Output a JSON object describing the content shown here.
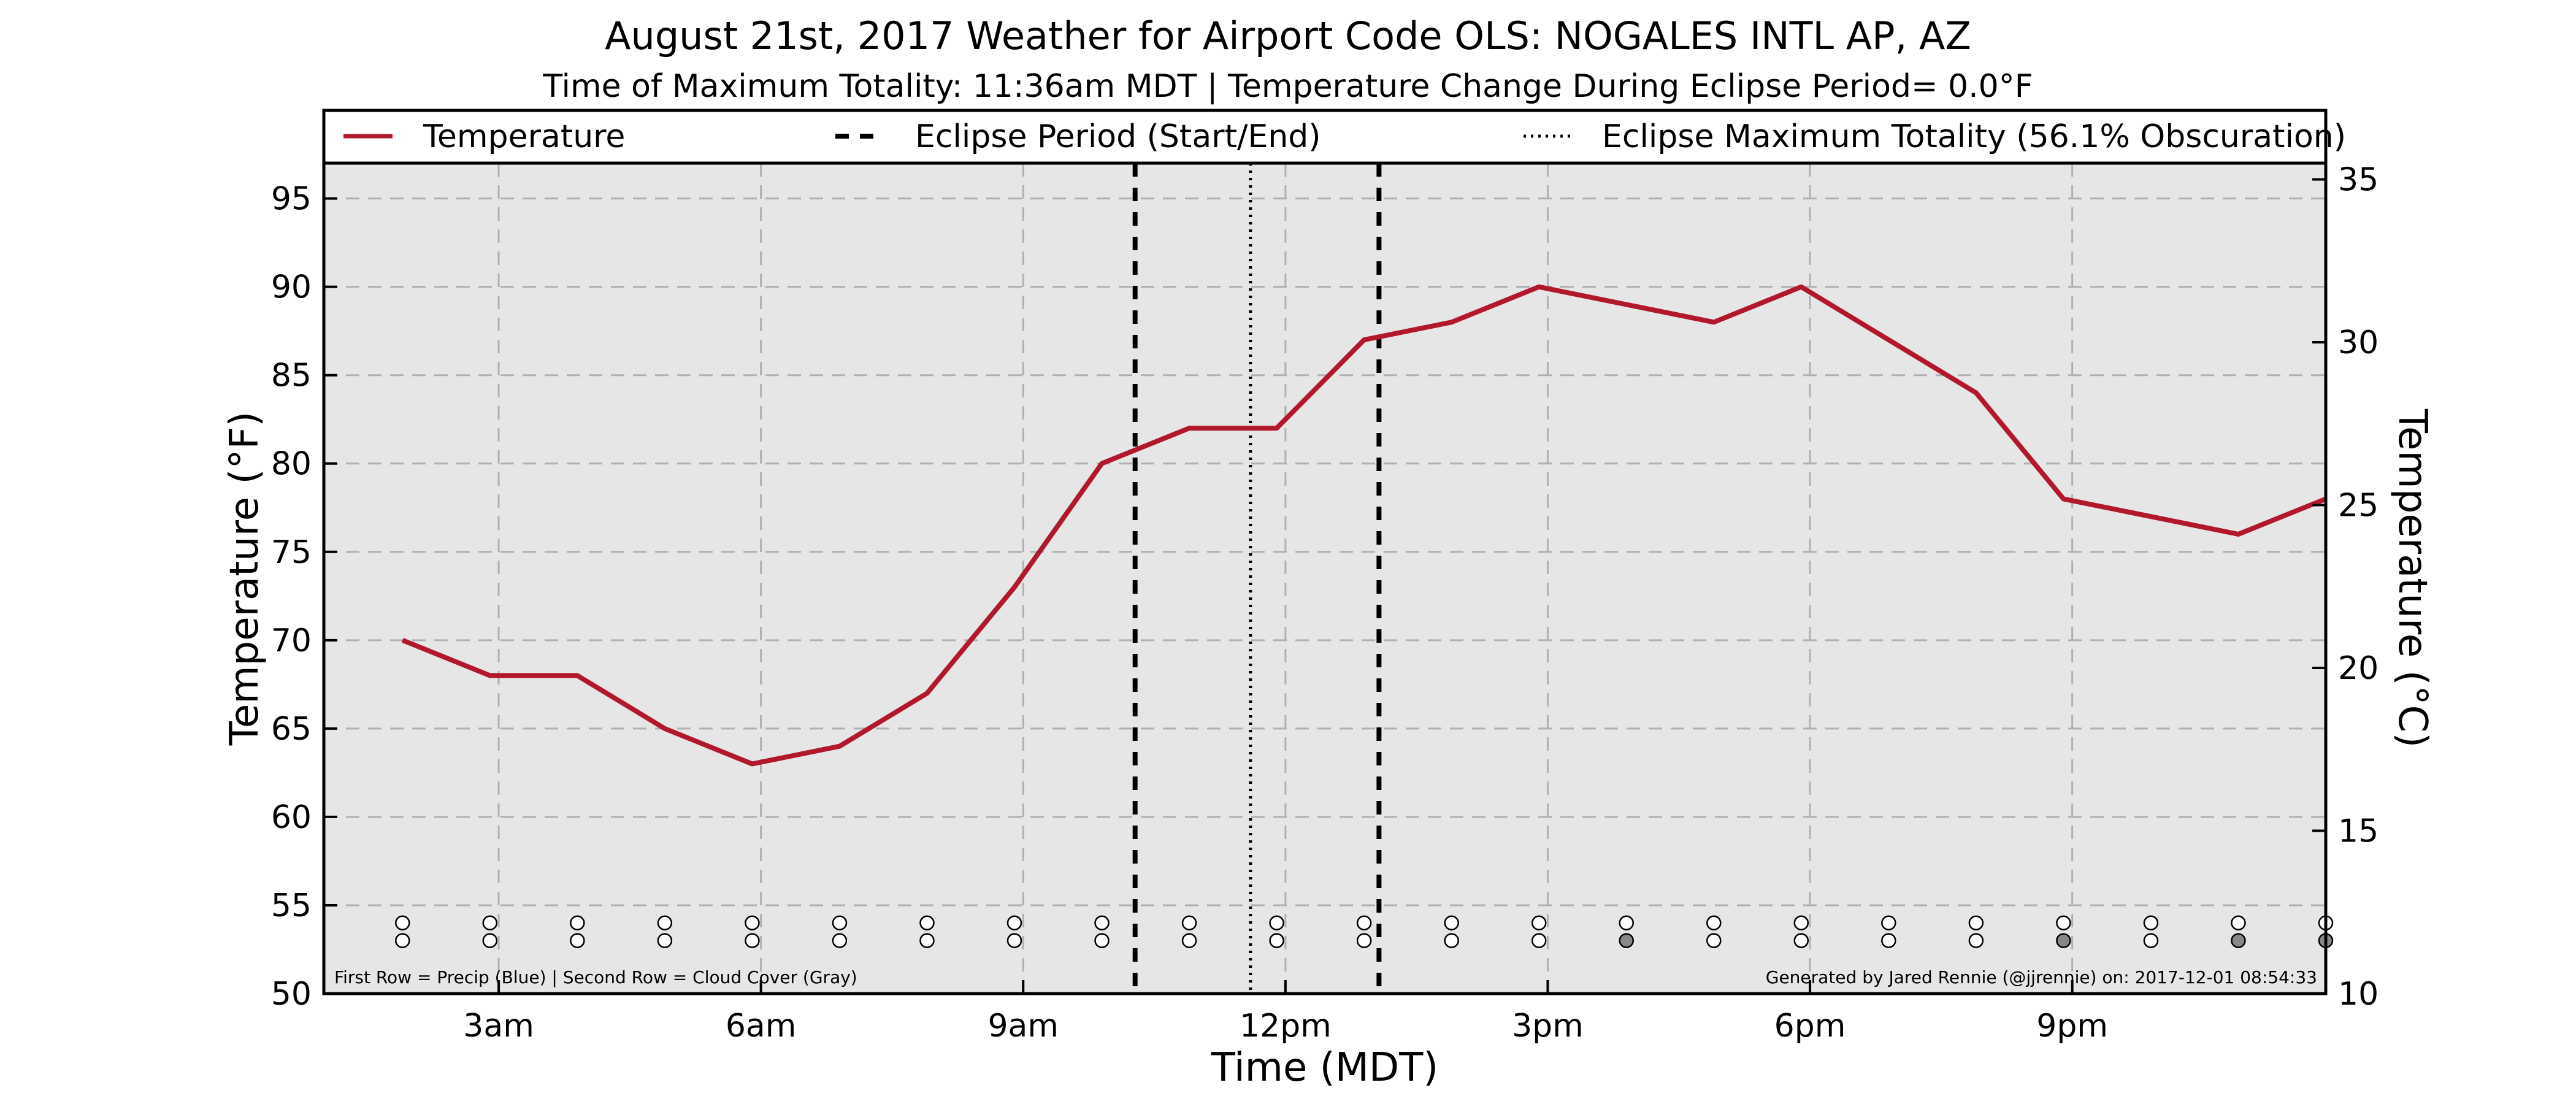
{
  "chart_data": {
    "type": "line",
    "title": "August 21st, 2017 Weather for Airport Code OLS: NOGALES INTL AP, AZ",
    "subtitle": "Time of Maximum Totality: 11:36am MDT | Temperature Change During Eclipse Period= 0.0°F",
    "xlabel": "Time (MDT)",
    "ylabel": "Temperature (°F)",
    "ylabel_right": "Temperature (°C)",
    "xlim": [
      1,
      23.9
    ],
    "ylim": [
      50,
      97
    ],
    "ylim_right": [
      10,
      35.5
    ],
    "x_ticks": [
      {
        "x": 3,
        "label": "3am"
      },
      {
        "x": 6,
        "label": "6am"
      },
      {
        "x": 9,
        "label": "9am"
      },
      {
        "x": 12,
        "label": "12pm"
      },
      {
        "x": 15,
        "label": "3pm"
      },
      {
        "x": 18,
        "label": "6pm"
      },
      {
        "x": 21,
        "label": "9pm"
      }
    ],
    "y_ticks": [
      50,
      55,
      60,
      65,
      70,
      75,
      80,
      85,
      90,
      95
    ],
    "y_ticks_right": [
      10,
      15,
      20,
      25,
      30,
      35
    ],
    "grid": true,
    "legend_position": "top, spanning full width",
    "series": [
      {
        "name": "Temperature",
        "color": "#b2182b",
        "x": [
          1.9,
          2.9,
          3.9,
          4.9,
          5.9,
          6.9,
          7.9,
          8.9,
          9.9,
          10.9,
          11.9,
          12.9,
          13.9,
          14.9,
          15.9,
          16.9,
          17.9,
          18.9,
          19.9,
          20.9,
          21.9,
          22.9,
          23.9
        ],
        "values": [
          70,
          68,
          68,
          65,
          63,
          64,
          67,
          73,
          80,
          82,
          82,
          87,
          88,
          90,
          89,
          88,
          90,
          87,
          84,
          78,
          77,
          76,
          78
        ]
      }
    ],
    "eclipse_start": 10.28,
    "eclipse_end": 13.07,
    "eclipse_max": 11.6,
    "legend": [
      {
        "label": "Temperature",
        "style": "solid",
        "color": "#b2182b"
      },
      {
        "label": "Eclipse Period (Start/End)",
        "style": "dashed",
        "color": "#000000"
      },
      {
        "label": "Eclipse Maximum Totality (56.1% Obscuration)",
        "style": "dotted",
        "color": "#000000"
      }
    ],
    "precip_row_y": 54,
    "cloud_row_y": 53,
    "cloud_cover": [
      {
        "x": 1.9,
        "color": "#ffffff"
      },
      {
        "x": 2.9,
        "color": "#ffffff"
      },
      {
        "x": 3.9,
        "color": "#ffffff"
      },
      {
        "x": 4.9,
        "color": "#ffffff"
      },
      {
        "x": 5.9,
        "color": "#ffffff"
      },
      {
        "x": 6.9,
        "color": "#ffffff"
      },
      {
        "x": 7.9,
        "color": "#ffffff"
      },
      {
        "x": 8.9,
        "color": "#ffffff"
      },
      {
        "x": 9.9,
        "color": "#ffffff"
      },
      {
        "x": 10.9,
        "color": "#ffffff"
      },
      {
        "x": 11.9,
        "color": "#ffffff"
      },
      {
        "x": 12.9,
        "color": "#ffffff"
      },
      {
        "x": 13.9,
        "color": "#ffffff"
      },
      {
        "x": 14.9,
        "color": "#ffffff"
      },
      {
        "x": 15.9,
        "color": "#888888"
      },
      {
        "x": 16.9,
        "color": "#ffffff"
      },
      {
        "x": 17.9,
        "color": "#ffffff"
      },
      {
        "x": 18.9,
        "color": "#ffffff"
      },
      {
        "x": 19.9,
        "color": "#ffffff"
      },
      {
        "x": 20.9,
        "color": "#888888"
      },
      {
        "x": 21.9,
        "color": "#ffffff"
      },
      {
        "x": 22.9,
        "color": "#888888"
      },
      {
        "x": 23.9,
        "color": "#888888"
      }
    ],
    "precip": [
      {
        "x": 1.9,
        "color": "#ffffff"
      },
      {
        "x": 2.9,
        "color": "#ffffff"
      },
      {
        "x": 3.9,
        "color": "#ffffff"
      },
      {
        "x": 4.9,
        "color": "#ffffff"
      },
      {
        "x": 5.9,
        "color": "#ffffff"
      },
      {
        "x": 6.9,
        "color": "#ffffff"
      },
      {
        "x": 7.9,
        "color": "#ffffff"
      },
      {
        "x": 8.9,
        "color": "#ffffff"
      },
      {
        "x": 9.9,
        "color": "#ffffff"
      },
      {
        "x": 10.9,
        "color": "#ffffff"
      },
      {
        "x": 11.9,
        "color": "#ffffff"
      },
      {
        "x": 12.9,
        "color": "#ffffff"
      },
      {
        "x": 13.9,
        "color": "#ffffff"
      },
      {
        "x": 14.9,
        "color": "#ffffff"
      },
      {
        "x": 15.9,
        "color": "#ffffff"
      },
      {
        "x": 16.9,
        "color": "#ffffff"
      },
      {
        "x": 17.9,
        "color": "#ffffff"
      },
      {
        "x": 18.9,
        "color": "#ffffff"
      },
      {
        "x": 19.9,
        "color": "#ffffff"
      },
      {
        "x": 20.9,
        "color": "#ffffff"
      },
      {
        "x": 21.9,
        "color": "#ffffff"
      },
      {
        "x": 22.9,
        "color": "#ffffff"
      },
      {
        "x": 23.9,
        "color": "#ffffff"
      }
    ],
    "footnote_left": "First Row = Precip (Blue) | Second Row = Cloud Cover (Gray)",
    "footnote_right": "Generated by Jared Rennie (@jjrennie) on: 2017-12-01 08:54:33",
    "background_color": "#e6e6e6",
    "grid_color": "#b0b0b0"
  }
}
